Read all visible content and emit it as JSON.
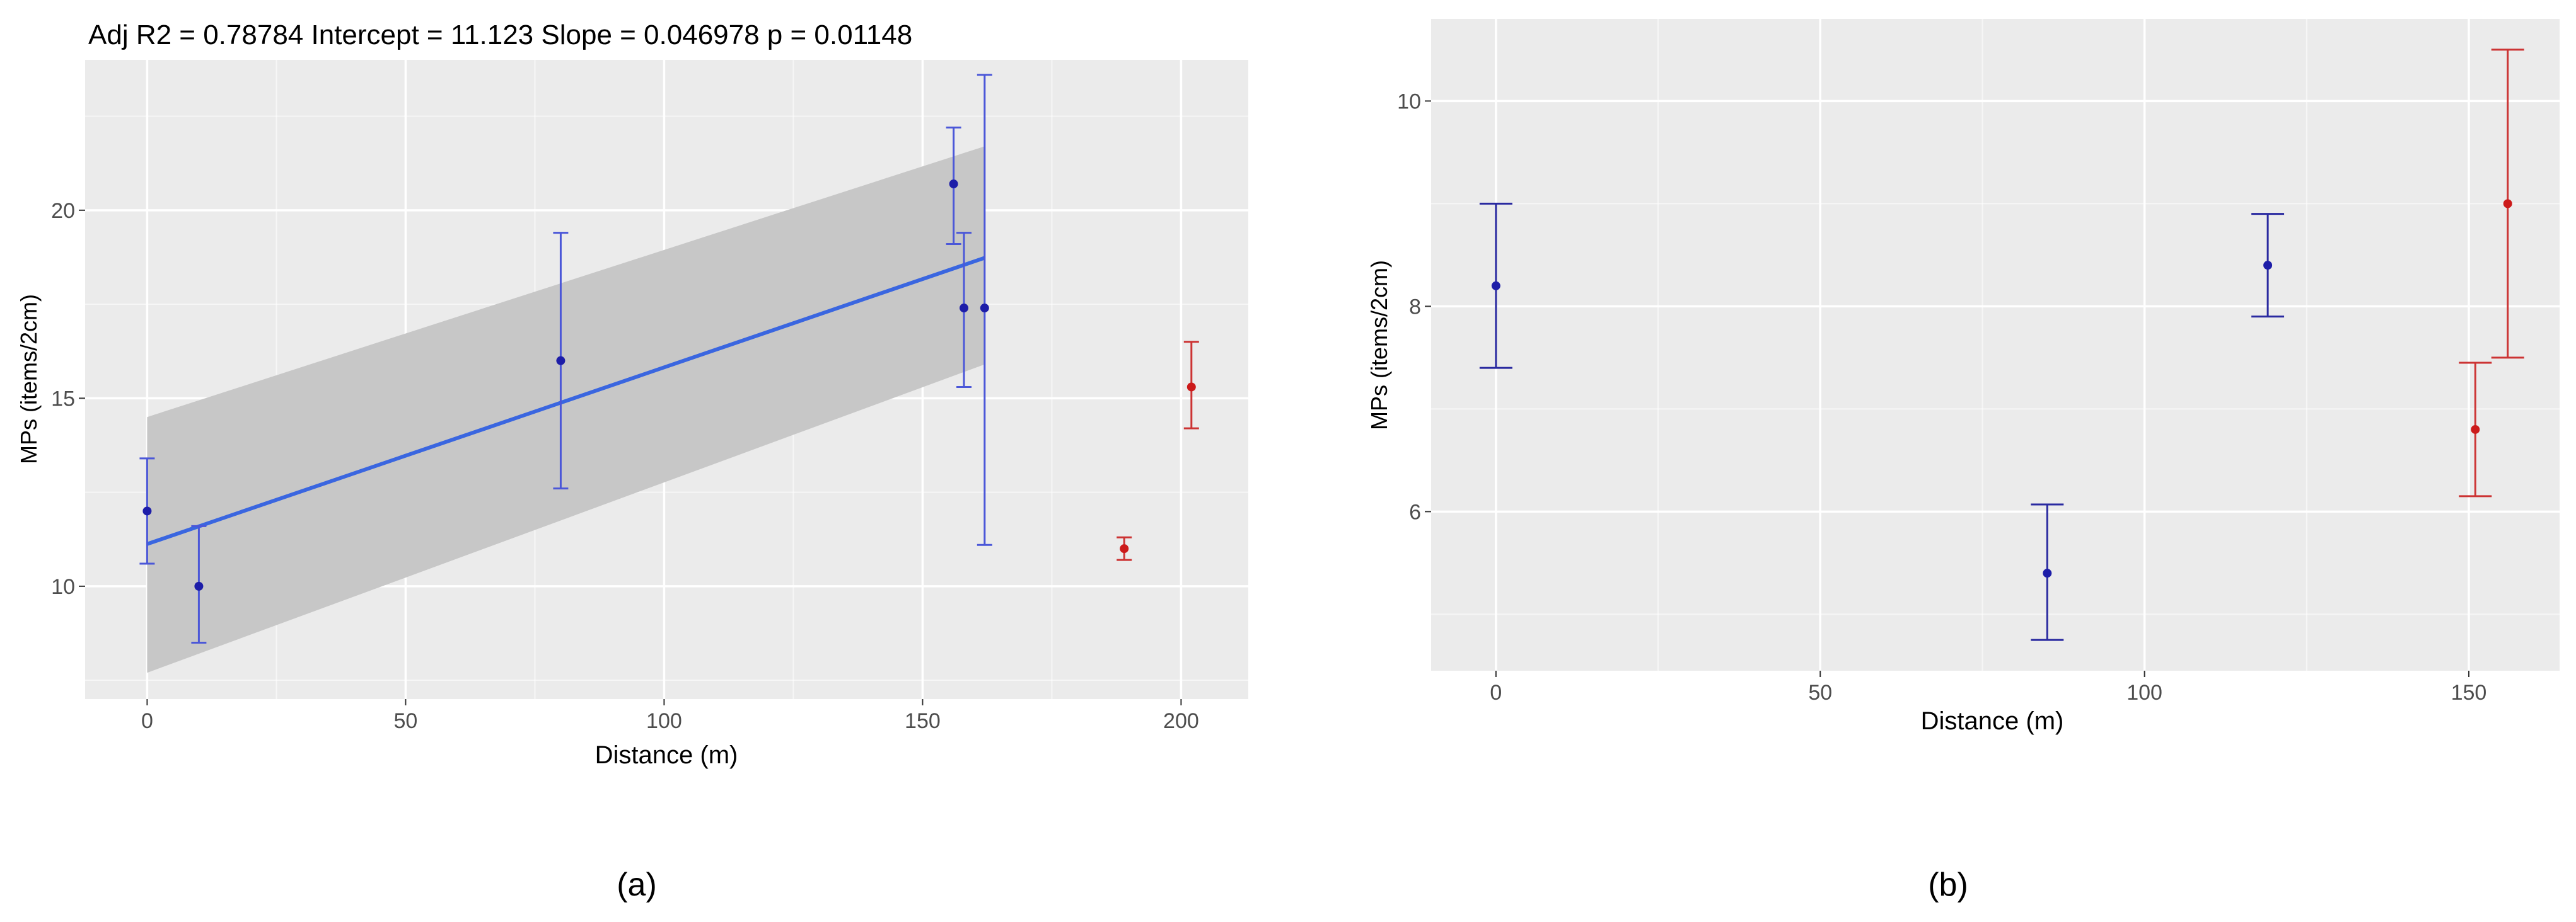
{
  "colors": {
    "panel_bg": "#ebebeb",
    "grid": "#ffffff",
    "point_blue": "#1d1da8",
    "point_red": "#cc1a1a",
    "fit_line": "#3a66e0",
    "ci_band": "#c7c7c7",
    "errbar_a": "#4b57d8",
    "errbar_b": "#2a2aa0",
    "errbar_red": "#cc3333"
  },
  "chart_data": [
    {
      "type": "scatter",
      "caption": "(a)",
      "title": "Adj R2 =  0.78784 Intercept = 11.123  Slope = 0.046978  p = 0.01148",
      "xlabel": "Distance (m)",
      "ylabel": "MPs (items/2cm)",
      "xlim": [
        -12,
        213
      ],
      "ylim": [
        7,
        24
      ],
      "x_ticks": [
        0,
        50,
        100,
        150,
        200
      ],
      "y_ticks": [
        10,
        15,
        20
      ],
      "grid": true,
      "series": [
        {
          "color": "blue",
          "points": [
            {
              "x": 0,
              "y": 12.0,
              "ymin": 10.6,
              "ymax": 13.4
            },
            {
              "x": 10,
              "y": 10.0,
              "ymin": 8.5,
              "ymax": 11.6
            },
            {
              "x": 80,
              "y": 16.0,
              "ymin": 12.6,
              "ymax": 19.4
            },
            {
              "x": 156,
              "y": 20.7,
              "ymin": 19.1,
              "ymax": 22.2
            },
            {
              "x": 158,
              "y": 17.4,
              "ymin": 15.3,
              "ymax": 19.4
            },
            {
              "x": 162,
              "y": 17.4,
              "ymin": 11.1,
              "ymax": 23.6
            }
          ]
        },
        {
          "color": "red",
          "points": [
            {
              "x": 189,
              "y": 11.0,
              "ymin": 10.7,
              "ymax": 11.3
            },
            {
              "x": 202,
              "y": 15.3,
              "ymin": 14.2,
              "ymax": 16.5
            }
          ]
        }
      ],
      "regression": {
        "x_range": [
          0,
          162
        ],
        "intercept": 11.123,
        "slope": 0.046978,
        "ci_band": [
          {
            "x": 0,
            "lower": 7.7,
            "upper": 14.5
          },
          {
            "x": 162,
            "lower": 15.9,
            "upper": 21.7
          }
        ]
      }
    },
    {
      "type": "scatter",
      "caption": "(b)",
      "title": "",
      "xlabel": "Distance (m)",
      "ylabel": "MPs (items/2cm)",
      "xlim": [
        -10,
        164
      ],
      "ylim": [
        4.45,
        10.8
      ],
      "x_ticks": [
        0,
        50,
        100,
        150
      ],
      "y_ticks": [
        6,
        8,
        10
      ],
      "grid": true,
      "series": [
        {
          "color": "blue",
          "points": [
            {
              "x": 0,
              "y": 8.2,
              "ymin": 7.4,
              "ymax": 9.0
            },
            {
              "x": 85,
              "y": 5.4,
              "ymin": 4.75,
              "ymax": 6.07
            },
            {
              "x": 119,
              "y": 8.4,
              "ymin": 7.9,
              "ymax": 8.9
            }
          ]
        },
        {
          "color": "red",
          "points": [
            {
              "x": 151,
              "y": 6.8,
              "ymin": 6.15,
              "ymax": 7.45
            },
            {
              "x": 156,
              "y": 9.0,
              "ymin": 7.5,
              "ymax": 10.5
            }
          ]
        }
      ]
    }
  ]
}
